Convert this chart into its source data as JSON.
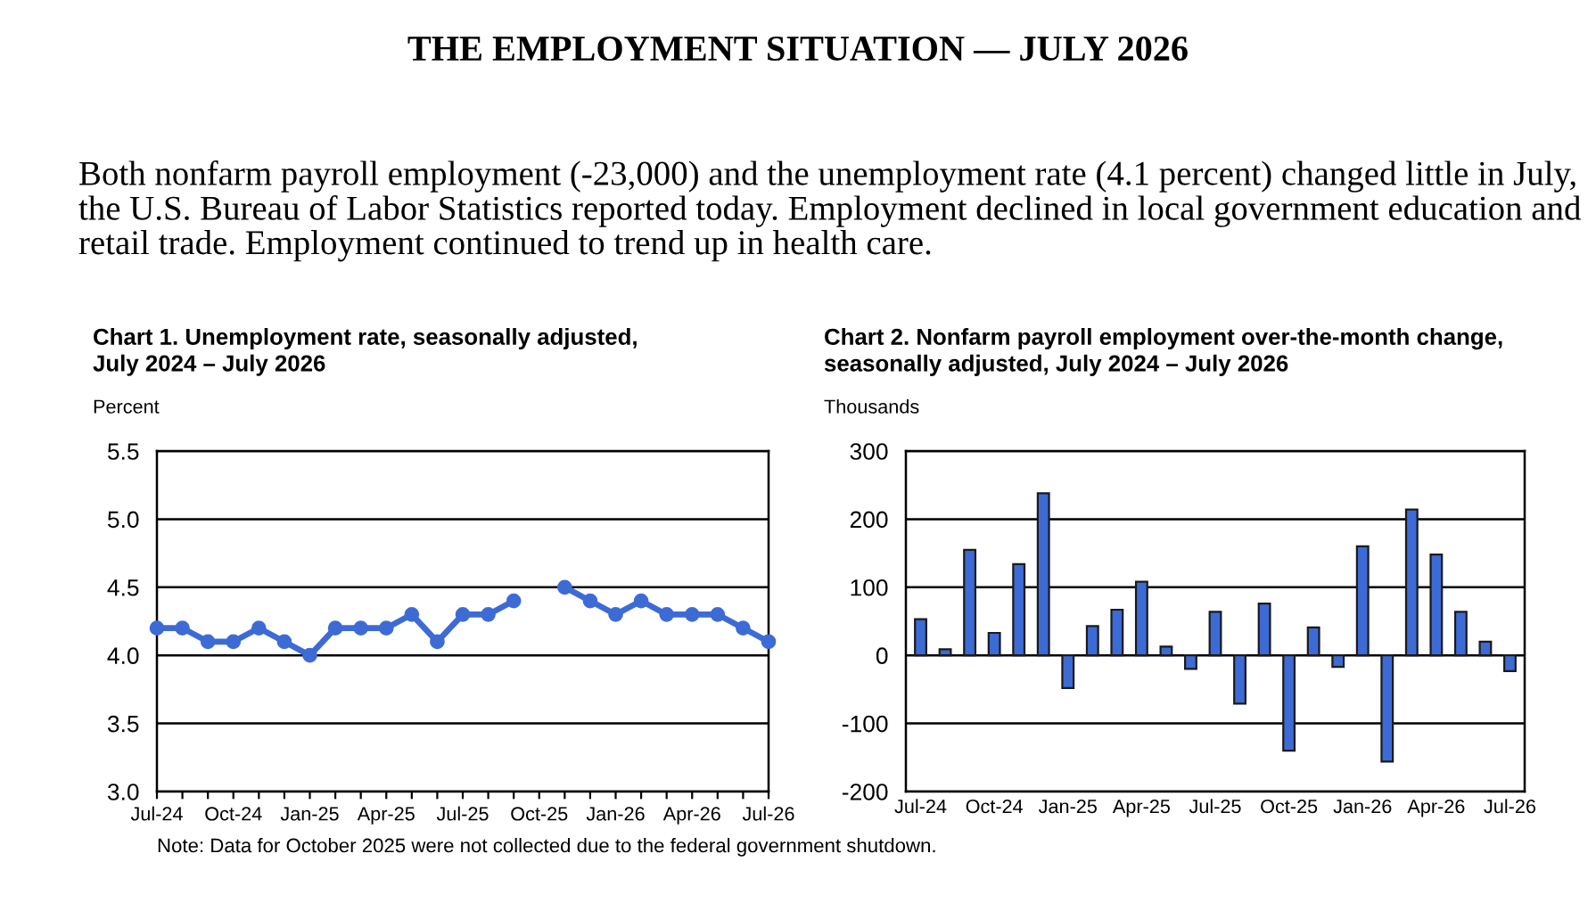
{
  "chart_data": [
    {
      "type": "other",
      "title": "THE EMPLOYMENT SITUATION — JULY 2026",
      "annotations": [
        "Both nonfarm payroll employment (-23,000) and the unemployment rate (4.1 percent) changed little in July, the U.S. Bureau of Labor Statistics reported today. Employment declined in local government education and retail trade. Employment continued to trend up in health care."
      ]
    },
    {
      "type": "line",
      "title": "Chart 1. Unemployment rate, seasonally adjusted,\nJuly 2024 – July 2026",
      "ylabel": "Percent",
      "categories": [
        "Jul-24",
        null,
        null,
        "Oct-24",
        null,
        null,
        "Jan-25",
        null,
        null,
        "Apr-25",
        null,
        null,
        "Jul-25",
        null,
        null,
        "Oct-25",
        null,
        null,
        "Jan-26",
        null,
        null,
        "Apr-26",
        null,
        null,
        "Jul-26"
      ],
      "series": [
        {
          "color": "#3d6bd6",
          "values": [
            4.2,
            4.2,
            4.1,
            4.1,
            4.2,
            4.1,
            4.0,
            4.2,
            4.2,
            4.2,
            4.3,
            4.1,
            4.3,
            4.3,
            4.4,
            null,
            4.5,
            4.4,
            4.3,
            4.4,
            4.3,
            4.3,
            4.3,
            4.2,
            4.1
          ]
        }
      ],
      "ylim": [
        3,
        5.5
      ],
      "yticks": [
        {
          "value": 3,
          "label": "3.0"
        },
        {
          "value": 3.5,
          "label": "3.5"
        },
        {
          "value": 4,
          "label": "4.0"
        },
        {
          "value": 4.5,
          "label": "4.5"
        },
        {
          "value": 5,
          "label": "5.0"
        },
        {
          "value": 5.5,
          "label": "5.5"
        }
      ],
      "grid": "y",
      "marker": "circle",
      "line_style": "solid",
      "annotations": [
        "Note: Data for October 2025 were not collected due to the federal government shutdown."
      ]
    },
    {
      "type": "bar",
      "title": "Chart 2. Nonfarm payroll employment over-the-month change,\nseasonally adjusted, July 2024 – July 2026",
      "ylabel": "Thousands",
      "categories": [
        "Jul-24",
        null,
        null,
        "Oct-24",
        null,
        null,
        "Jan-25",
        null,
        null,
        "Apr-25",
        null,
        null,
        "Jul-25",
        null,
        null,
        "Oct-25",
        null,
        null,
        "Jan-26",
        null,
        null,
        "Apr-26",
        null,
        null,
        "Jul-26"
      ],
      "series": [
        {
          "color": "#3d6bd6",
          "values": [
            53,
            9,
            155,
            33,
            134,
            238,
            -48,
            43,
            67,
            108,
            13,
            -20,
            64,
            -71,
            76,
            -140,
            41,
            -17,
            160,
            -156,
            214,
            148,
            64,
            20,
            -23
          ]
        }
      ],
      "ylim": [
        -200,
        300
      ],
      "yticks": [
        -200,
        -100,
        0,
        100,
        200,
        300
      ],
      "grid": "y"
    }
  ]
}
